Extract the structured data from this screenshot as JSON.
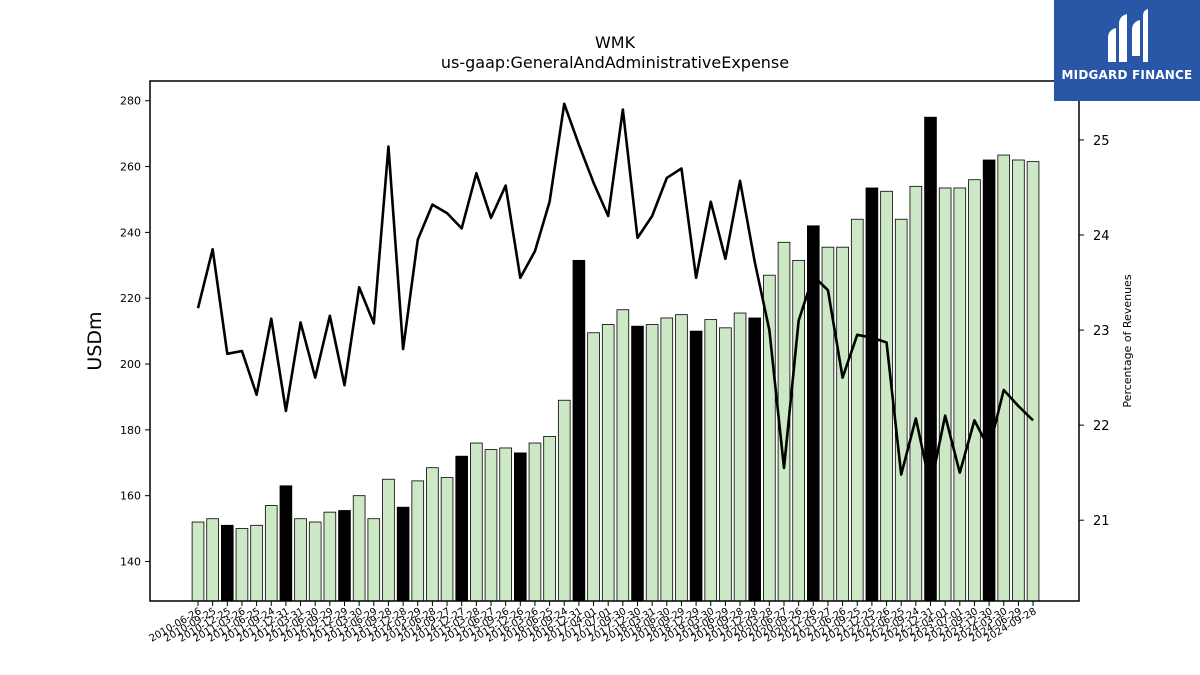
{
  "watermark": {
    "brand": "MIDGARD FINANCE",
    "bg_color": "#2a56a8"
  },
  "chart_data": {
    "type": "bar",
    "title": "WMK",
    "subtitle": "us-gaap:GeneralAndAdministrativeExpense",
    "ylabel": "USDm",
    "ylabel_right": "Percentage of Revenues",
    "ylim": [
      128,
      286
    ],
    "ylim_right": [
      20.15,
      25.62
    ],
    "yticks": [
      140,
      160,
      180,
      200,
      220,
      240,
      260,
      280
    ],
    "yticks_right": [
      21,
      22,
      23,
      24,
      25
    ],
    "bar_colors": {
      "quarter": "#cce8c5",
      "fiscal_year": "#000000"
    },
    "line_color": "#000000",
    "x": [
      "2010-06-26",
      "2010-09-25",
      "2010-12-25",
      "2011-03-26",
      "2011-06-25",
      "2011-09-24",
      "2011-12-31",
      "2012-03-31",
      "2012-06-30",
      "2012-09-29",
      "2012-12-29",
      "2013-03-30",
      "2013-06-29",
      "2013-09-28",
      "2013-12-28",
      "2014-03-29",
      "2014-06-28",
      "2014-09-27",
      "2014-12-27",
      "2015-03-28",
      "2015-06-27",
      "2015-09-26",
      "2015-12-26",
      "2016-03-26",
      "2016-06-25",
      "2016-09-24",
      "2016-12-31",
      "2017-04-01",
      "2017-07-01",
      "2017-09-30",
      "2017-12-30",
      "2018-03-31",
      "2018-06-30",
      "2018-09-29",
      "2018-12-29",
      "2019-03-30",
      "2019-06-29",
      "2019-09-28",
      "2019-12-28",
      "2020-03-28",
      "2020-06-27",
      "2020-09-26",
      "2020-12-26",
      "2021-03-27",
      "2021-06-26",
      "2021-09-25",
      "2021-12-25",
      "2022-03-26",
      "2022-06-25",
      "2022-09-24",
      "2022-12-31",
      "2023-04-01",
      "2023-07-01",
      "2023-09-30",
      "2023-12-30",
      "2024-03-30",
      "2024-06-29",
      "2024-09-28"
    ],
    "series": [
      {
        "type": "bar",
        "values": [
          152,
          153,
          151,
          150,
          151,
          157,
          163,
          153,
          152,
          155,
          155.5,
          160,
          153,
          165,
          156.5,
          164.5,
          168.5,
          165.5,
          172,
          176,
          174,
          174.5,
          173,
          176,
          178,
          189,
          231.5,
          209.5,
          212,
          216.5,
          211.5,
          212,
          214,
          215,
          210,
          213.5,
          211,
          215.5,
          214,
          227,
          237,
          231.5,
          242,
          235.5,
          235.5,
          244,
          253.5,
          252.5,
          244,
          254,
          275,
          253.5,
          253.5,
          256,
          262,
          263.5,
          262,
          261.5
        ],
        "fiscal_year_end": [
          false,
          false,
          true,
          false,
          false,
          false,
          true,
          false,
          false,
          false,
          true,
          false,
          false,
          false,
          true,
          false,
          false,
          false,
          true,
          false,
          false,
          false,
          true,
          false,
          false,
          false,
          true,
          false,
          false,
          false,
          true,
          false,
          false,
          false,
          true,
          false,
          false,
          false,
          true,
          false,
          false,
          false,
          true,
          false,
          false,
          false,
          true,
          false,
          false,
          false,
          true,
          false,
          false,
          false,
          true,
          false,
          false,
          false
        ]
      },
      {
        "type": "line",
        "axis": "right",
        "values": [
          23.23,
          23.85,
          22.75,
          22.78,
          22.32,
          23.12,
          22.15,
          23.08,
          22.5,
          23.15,
          22.42,
          23.45,
          23.07,
          24.93,
          22.8,
          23.95,
          24.32,
          24.23,
          24.07,
          24.65,
          24.18,
          24.52,
          23.55,
          23.83,
          24.35,
          25.38,
          24.95,
          24.55,
          24.2,
          25.32,
          23.97,
          24.2,
          24.6,
          24.7,
          23.55,
          24.35,
          23.75,
          24.57,
          23.72,
          23.0,
          21.55,
          23.1,
          23.57,
          23.42,
          22.5,
          22.95,
          22.92,
          22.87,
          21.48,
          22.07,
          21.35,
          22.1,
          21.5,
          22.05,
          21.75,
          22.37,
          22.2,
          22.05
        ]
      }
    ]
  }
}
